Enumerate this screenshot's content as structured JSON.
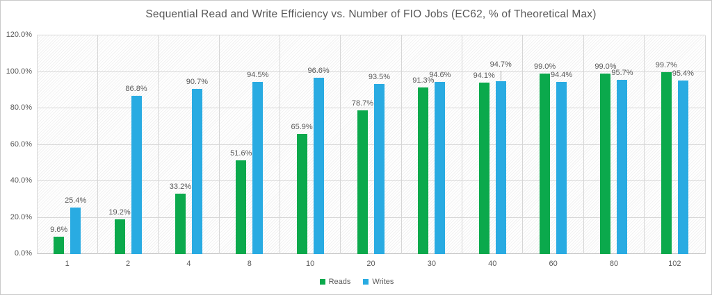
{
  "chart_data": {
    "type": "bar",
    "title": "Sequential Read and Write Efficiency vs. Number of FIO Jobs (EC62, % of Theoretical Max)",
    "categories": [
      "1",
      "2",
      "4",
      "8",
      "10",
      "20",
      "30",
      "40",
      "60",
      "80",
      "102"
    ],
    "series": [
      {
        "name": "Reads",
        "color": "#0BA94C",
        "values": [
          9.6,
          19.2,
          33.2,
          51.6,
          65.9,
          78.7,
          91.3,
          94.1,
          99.0,
          99.0,
          99.7
        ]
      },
      {
        "name": "Writes",
        "color": "#29ABE2",
        "values": [
          25.4,
          86.8,
          90.7,
          94.5,
          96.6,
          93.5,
          94.6,
          94.7,
          94.4,
          95.7,
          95.4
        ]
      }
    ],
    "data_labels": [
      "9.6%",
      "19.2%",
      "33.2%",
      "51.6%",
      "65.9%",
      "78.7%",
      "91.3%",
      "94.1%",
      "99.0%",
      "99.0%",
      "99.7%",
      "25.4%",
      "86.8%",
      "90.7%",
      "94.5%",
      "96.6%",
      "93.5%",
      "94.6%",
      "94.7%",
      "94.4%",
      "95.7%",
      "95.4%"
    ],
    "ylim": [
      0,
      120
    ],
    "ytick_step": 20,
    "ytick_labels": [
      "0.0%",
      "20.0%",
      "40.0%",
      "60.0%",
      "80.0%",
      "100.0%",
      "120.0%"
    ],
    "grid": "horizontal_and_vertical",
    "plot_background": "diagonal-hatch-pattern",
    "legend_position": "bottom",
    "legend_entries": [
      "Reads",
      "Writes"
    ],
    "xlabel": "",
    "ylabel": ""
  }
}
